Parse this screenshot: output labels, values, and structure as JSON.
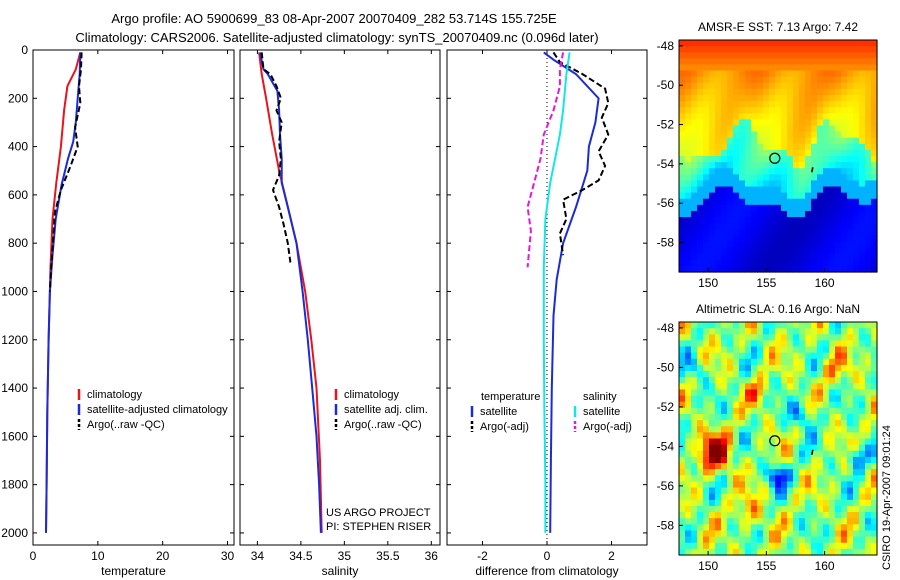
{
  "header": {
    "title_line1": "Argo profile: AO 5900699_83 08-Apr-2007 20070409_282 53.714S 155.725E",
    "title_line2": "Climatology: CARS2006. Satellite-adjusted climatology: synTS_20070409.nc (0.096d later)"
  },
  "credit": {
    "line1": "US ARGO PROJECT",
    "line2": "PI: STEPHEN RISER"
  },
  "watermark": "CSIRO 19-Apr-2007 09:01:24",
  "colors": {
    "climatology": "#e8141b",
    "satellite": "#1a2bd8",
    "argo": "#000000",
    "cyan": "#12e6e6",
    "magenta": "#e01ad8"
  },
  "chart_data": [
    {
      "type": "line",
      "xlabel": "temperature",
      "xlim": [
        0,
        31
      ],
      "ylim": [
        2050,
        0
      ],
      "xticks": [
        "0",
        "10",
        "20",
        "30"
      ],
      "xtick_values": [
        0,
        10,
        20,
        30
      ],
      "yticks": [
        "0",
        "200",
        "400",
        "600",
        "800",
        "1000",
        "1200",
        "1400",
        "1600",
        "1800",
        "2000"
      ],
      "ytick_values": [
        0,
        200,
        400,
        600,
        800,
        1000,
        1200,
        1400,
        1600,
        1800,
        2000
      ],
      "legend": [
        "climatology",
        "satellite-adjusted climatology",
        "Argo(..raw -QC)"
      ],
      "series": [
        {
          "name": "climatology",
          "color": "#e8141b",
          "dash": "",
          "points": [
            [
              7.3,
              10
            ],
            [
              6.6,
              80
            ],
            [
              5.3,
              150
            ],
            [
              4.8,
              250
            ],
            [
              4.3,
              400
            ],
            [
              3.6,
              550
            ],
            [
              3.0,
              700
            ],
            [
              2.7,
              900
            ],
            [
              2.4,
              1200
            ],
            [
              2.2,
              1500
            ],
            [
              2.1,
              1800
            ],
            [
              2.0,
              2000
            ]
          ]
        },
        {
          "name": "satellite-adjusted climatology",
          "color": "#1a2bd8",
          "dash": "",
          "points": [
            [
              7.3,
              10
            ],
            [
              7.2,
              100
            ],
            [
              6.9,
              200
            ],
            [
              6.6,
              300
            ],
            [
              6.2,
              380
            ],
            [
              5.4,
              450
            ],
            [
              4.4,
              560
            ],
            [
              3.5,
              700
            ],
            [
              3.0,
              850
            ],
            [
              2.6,
              1000
            ],
            [
              2.4,
              1200
            ],
            [
              2.2,
              1500
            ],
            [
              2.1,
              1800
            ],
            [
              2.0,
              2000
            ]
          ]
        },
        {
          "name": "Argo(..raw -QC)",
          "color": "#000000",
          "dash": "6,3",
          "points": [
            [
              7.5,
              10
            ],
            [
              7.4,
              80
            ],
            [
              7.1,
              150
            ],
            [
              7.3,
              220
            ],
            [
              6.5,
              320
            ],
            [
              6.9,
              400
            ],
            [
              5.8,
              480
            ],
            [
              4.3,
              580
            ],
            [
              3.4,
              670
            ],
            [
              3.2,
              750
            ],
            [
              2.8,
              900
            ],
            [
              2.6,
              1000
            ]
          ]
        }
      ]
    },
    {
      "type": "line",
      "xlabel": "salinity",
      "xlim": [
        33.8,
        36.1
      ],
      "ylim": [
        2050,
        0
      ],
      "xticks": [
        "34",
        "34.5",
        "35",
        "35.5",
        "36"
      ],
      "xtick_values": [
        34,
        34.5,
        35,
        35.5,
        36
      ],
      "legend": [
        "climatology",
        "satellite adj. clim.",
        "Argo(..raw -QC)"
      ],
      "series": [
        {
          "name": "climatology",
          "color": "#e8141b",
          "dash": "",
          "points": [
            [
              34.02,
              10
            ],
            [
              34.05,
              100
            ],
            [
              34.1,
              200
            ],
            [
              34.17,
              350
            ],
            [
              34.25,
              500
            ],
            [
              34.33,
              620
            ],
            [
              34.45,
              800
            ],
            [
              34.55,
              1000
            ],
            [
              34.62,
              1200
            ],
            [
              34.68,
              1400
            ],
            [
              34.72,
              1700
            ],
            [
              34.74,
              2000
            ]
          ]
        },
        {
          "name": "satellite adj. clim.",
          "color": "#1a2bd8",
          "dash": "",
          "points": [
            [
              34.03,
              10
            ],
            [
              34.07,
              80
            ],
            [
              34.12,
              100
            ],
            [
              34.23,
              170
            ],
            [
              34.25,
              250
            ],
            [
              34.26,
              350
            ],
            [
              34.28,
              450
            ],
            [
              34.28,
              550
            ],
            [
              34.35,
              650
            ],
            [
              34.45,
              800
            ],
            [
              34.52,
              1000
            ],
            [
              34.58,
              1200
            ],
            [
              34.63,
              1400
            ],
            [
              34.68,
              1600
            ],
            [
              34.71,
              1800
            ],
            [
              34.73,
              2000
            ]
          ]
        },
        {
          "name": "Argo(..raw -QC)",
          "color": "#000000",
          "dash": "6,3",
          "points": [
            [
              34.05,
              10
            ],
            [
              34.07,
              80
            ],
            [
              34.15,
              100
            ],
            [
              34.22,
              150
            ],
            [
              34.27,
              200
            ],
            [
              34.22,
              250
            ],
            [
              34.28,
              300
            ],
            [
              34.25,
              380
            ],
            [
              34.27,
              450
            ],
            [
              34.25,
              520
            ],
            [
              34.18,
              580
            ],
            [
              34.25,
              650
            ],
            [
              34.3,
              720
            ],
            [
              34.35,
              800
            ],
            [
              34.38,
              880
            ]
          ]
        }
      ]
    },
    {
      "type": "line",
      "xlabel": "difference from climatology",
      "xlim": [
        -3.1,
        3.1
      ],
      "ylim": [
        2050,
        0
      ],
      "xticks": [
        "-2",
        "0",
        "2"
      ],
      "xtick_values": [
        -2,
        0,
        2
      ],
      "legend_titles": [
        "temperature",
        "salinity"
      ],
      "legend": [
        "satellite",
        "Argo(-adj)",
        "satellite",
        "Argo(-adj)"
      ],
      "series": [
        {
          "name": "satellite",
          "color": "#1a2bd8",
          "dash": "",
          "points": [
            [
              -0.1,
              10
            ],
            [
              0.2,
              40
            ],
            [
              0.9,
              100
            ],
            [
              1.6,
              200
            ],
            [
              1.5,
              300
            ],
            [
              1.3,
              400
            ],
            [
              1.25,
              500
            ],
            [
              0.9,
              650
            ],
            [
              0.5,
              800
            ],
            [
              0.3,
              950
            ],
            [
              0.2,
              1100
            ],
            [
              0.15,
              1400
            ],
            [
              0.12,
              1700
            ],
            [
              0.1,
              2000
            ]
          ]
        },
        {
          "name": "Argo(-adj)",
          "color": "#000000",
          "dash": "6,3",
          "points": [
            [
              0.2,
              10
            ],
            [
              0.4,
              50
            ],
            [
              1.1,
              100
            ],
            [
              1.8,
              160
            ],
            [
              1.9,
              220
            ],
            [
              1.7,
              280
            ],
            [
              1.9,
              350
            ],
            [
              1.6,
              420
            ],
            [
              1.8,
              480
            ],
            [
              1.6,
              540
            ],
            [
              1.1,
              580
            ],
            [
              0.5,
              620
            ],
            [
              0.6,
              700
            ],
            [
              0.4,
              760
            ],
            [
              0.5,
              850
            ]
          ]
        },
        {
          "name": "satellite",
          "color": "#12e6e6",
          "dash": "",
          "points": [
            [
              0.7,
              10
            ],
            [
              0.6,
              100
            ],
            [
              0.5,
              250
            ],
            [
              0.4,
              350
            ],
            [
              0.25,
              450
            ],
            [
              0.1,
              550
            ],
            [
              -0.05,
              700
            ],
            [
              -0.1,
              900
            ],
            [
              -0.1,
              1200
            ],
            [
              -0.08,
              1500
            ],
            [
              -0.05,
              1800
            ],
            [
              -0.05,
              2000
            ]
          ]
        },
        {
          "name": "Argo(-adj)",
          "color": "#e01ad8",
          "dash": "6,3",
          "points": [
            [
              0.5,
              10
            ],
            [
              0.4,
              80
            ],
            [
              0.4,
              150
            ],
            [
              0.2,
              250
            ],
            [
              -0.1,
              350
            ],
            [
              -0.2,
              450
            ],
            [
              -0.4,
              550
            ],
            [
              -0.6,
              650
            ],
            [
              -0.5,
              750
            ],
            [
              -0.6,
              900
            ]
          ]
        }
      ]
    },
    {
      "type": "heatmap",
      "title": "AMSR-E SST: 7.13 Argo: 7.42",
      "xticks": [
        "150",
        "155",
        "160"
      ],
      "xtick_values": [
        150,
        155,
        160
      ],
      "yticks": [
        "-48",
        "-50",
        "-52",
        "-54",
        "-56",
        "-58"
      ],
      "ytick_values": [
        -48,
        -50,
        -52,
        -54,
        -56,
        -58
      ],
      "xlim": [
        147.5,
        164.5
      ],
      "ylim": [
        -59.5,
        -47.7
      ],
      "marker": [
        155.725,
        -53.714
      ]
    },
    {
      "type": "heatmap",
      "title": "Altimetric SLA: 0.16 Argo: NaN",
      "xticks": [
        "150",
        "155",
        "160"
      ],
      "xtick_values": [
        150,
        155,
        160
      ],
      "yticks": [
        "-48",
        "-50",
        "-52",
        "-54",
        "-56",
        "-58"
      ],
      "ytick_values": [
        -48,
        -50,
        -52,
        -54,
        -56,
        -58
      ],
      "xlim": [
        147.5,
        164.5
      ],
      "ylim": [
        -59.5,
        -47.7
      ],
      "marker": [
        155.725,
        -53.714
      ]
    }
  ]
}
